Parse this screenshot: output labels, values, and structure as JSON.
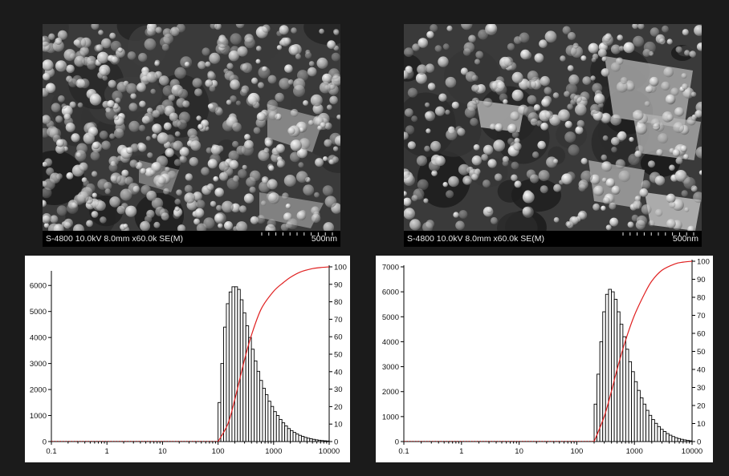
{
  "micrographs": [
    {
      "caption": "S-4800 10.0kV 8.0mm x60.0k SE(M)",
      "scale_label": "500nm"
    },
    {
      "caption": "S-4800 10.0kV 8.0mm x60.0k SE(M)",
      "scale_label": "500nm"
    }
  ],
  "chart_data": [
    {
      "type": "bar",
      "x_scale": "log",
      "xlim": [
        0.1,
        10000
      ],
      "x_ticks": [
        "0.1",
        "1",
        "10",
        "100",
        "1000",
        "10000"
      ],
      "ylim": [
        0,
        6500
      ],
      "y_ticks": [
        "0",
        "1000",
        "2000",
        "3000",
        "4000",
        "5000",
        "6000"
      ],
      "y2lim": [
        0,
        100
      ],
      "y2_ticks": [
        "0",
        "10",
        "20",
        "30",
        "40",
        "50",
        "60",
        "70",
        "80",
        "90",
        "100"
      ],
      "xlabel": "",
      "ylabel": "",
      "y2label": "",
      "bin_edges": [
        100,
        112,
        126,
        141,
        158,
        178,
        200,
        224,
        251,
        282,
        316,
        355,
        398,
        447,
        501,
        562,
        631,
        708,
        794,
        891,
        1000,
        1122,
        1259,
        1413,
        1585,
        1778,
        1995,
        2239,
        2512,
        2818,
        3162,
        3548,
        3981,
        4467,
        5012,
        5623,
        6310,
        7079,
        7943,
        8913,
        10000
      ],
      "values": [
        1500,
        3000,
        4400,
        5300,
        5750,
        5950,
        5950,
        5850,
        5450,
        4950,
        4450,
        4000,
        3550,
        3100,
        2700,
        2350,
        2050,
        1800,
        1550,
        1350,
        1150,
        1000,
        850,
        720,
        600,
        500,
        420,
        350,
        290,
        240,
        200,
        160,
        130,
        105,
        85,
        65,
        50,
        38,
        28,
        20
      ],
      "cumulative": {
        "x": [
          100,
          150,
          200,
          300,
          400,
          600,
          1000,
          1500,
          2000,
          3000,
          5000,
          7000,
          10000
        ],
        "values": [
          0,
          10,
          24,
          47,
          61,
          76,
          86,
          91,
          94,
          97,
          99,
          99.6,
          100
        ]
      }
    },
    {
      "type": "bar",
      "x_scale": "log",
      "xlim": [
        0.1,
        10000
      ],
      "x_ticks": [
        "0.1",
        "1",
        "10",
        "100",
        "1000",
        "10000"
      ],
      "ylim": [
        0,
        7000
      ],
      "y_ticks": [
        "0",
        "1000",
        "2000",
        "3000",
        "4000",
        "5000",
        "6000",
        "7000"
      ],
      "y2lim": [
        0,
        100
      ],
      "y2_ticks": [
        "0",
        "10",
        "20",
        "30",
        "40",
        "50",
        "60",
        "70",
        "80",
        "90",
        "100"
      ],
      "xlabel": "",
      "ylabel": "",
      "y2label": "",
      "bin_edges": [
        200,
        224,
        251,
        282,
        316,
        355,
        398,
        447,
        501,
        562,
        631,
        708,
        794,
        891,
        1000,
        1122,
        1259,
        1413,
        1585,
        1778,
        1995,
        2239,
        2512,
        2818,
        3162,
        3548,
        3981,
        4467,
        5012,
        5623,
        6310,
        7079,
        7943,
        8913,
        10000
      ],
      "values": [
        1500,
        2700,
        4000,
        5200,
        5900,
        6100,
        6000,
        5700,
        5200,
        4700,
        4200,
        3700,
        3200,
        2800,
        2400,
        2050,
        1750,
        1500,
        1250,
        1050,
        880,
        730,
        600,
        490,
        400,
        320,
        255,
        200,
        155,
        120,
        90,
        65,
        45,
        30
      ],
      "cumulative": {
        "x": [
          200,
          300,
          400,
          500,
          700,
          1000,
          1500,
          2000,
          3000,
          5000,
          7000,
          10000
        ],
        "values": [
          0,
          14,
          28,
          40,
          56,
          70,
          82,
          89,
          95,
          98.5,
          99.5,
          100
        ]
      }
    }
  ]
}
